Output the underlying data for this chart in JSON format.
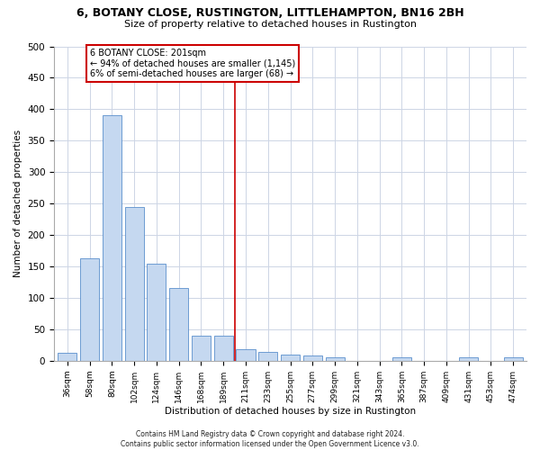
{
  "title": "6, BOTANY CLOSE, RUSTINGTON, LITTLEHAMPTON, BN16 2BH",
  "subtitle": "Size of property relative to detached houses in Rustington",
  "xlabel": "Distribution of detached houses by size in Rustington",
  "ylabel": "Number of detached properties",
  "categories": [
    "36sqm",
    "58sqm",
    "80sqm",
    "102sqm",
    "124sqm",
    "146sqm",
    "168sqm",
    "189sqm",
    "211sqm",
    "233sqm",
    "255sqm",
    "277sqm",
    "299sqm",
    "321sqm",
    "343sqm",
    "365sqm",
    "387sqm",
    "409sqm",
    "431sqm",
    "453sqm",
    "474sqm"
  ],
  "values": [
    13,
    163,
    390,
    245,
    155,
    115,
    40,
    40,
    18,
    14,
    10,
    8,
    6,
    0,
    0,
    5,
    0,
    0,
    5,
    0,
    5
  ],
  "bar_color": "#c5d8f0",
  "bar_edge_color": "#5b8fcc",
  "vline_x": 7.5,
  "vline_color": "#cc0000",
  "annotation_text": "6 BOTANY CLOSE: 201sqm\n← 94% of detached houses are smaller (1,145)\n6% of semi-detached houses are larger (68) →",
  "annotation_box_color": "#cc0000",
  "annotation_bg": "#ffffff",
  "ylim": [
    0,
    500
  ],
  "yticks": [
    0,
    50,
    100,
    150,
    200,
    250,
    300,
    350,
    400,
    450,
    500
  ],
  "footer": "Contains HM Land Registry data © Crown copyright and database right 2024.\nContains public sector information licensed under the Open Government Licence v3.0.",
  "bg_color": "#ffffff",
  "grid_color": "#cdd5e5"
}
